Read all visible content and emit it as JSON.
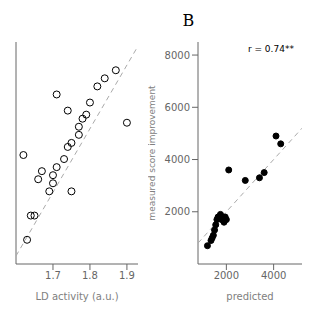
{
  "chart_data": [
    {
      "type": "scatter",
      "xlabel": "LD activity (a.u.)",
      "xlim": [
        1.6,
        1.93
      ],
      "xticks": [
        1.7,
        1.8,
        1.9
      ],
      "ylim": [
        0.3,
        0.85
      ],
      "yticks": [],
      "tick_labels": "x",
      "series": [
        {
          "type": "scatter",
          "marker": "open_circle",
          "color": "#000000",
          "x": [
            1.62,
            1.71,
            1.74,
            1.77,
            1.8,
            1.84,
            1.7,
            1.75,
            1.77,
            1.67,
            1.66,
            1.69,
            1.7,
            1.71,
            1.73,
            1.75,
            1.78,
            1.82,
            1.87,
            1.64,
            1.63,
            1.65,
            1.74,
            1.79,
            1.9
          ],
          "values": [
            0.57,
            0.72,
            0.68,
            0.62,
            0.7,
            0.76,
            0.52,
            0.6,
            0.64,
            0.53,
            0.51,
            0.48,
            0.5,
            0.54,
            0.56,
            0.48,
            0.66,
            0.74,
            0.78,
            0.42,
            0.36,
            0.42,
            0.59,
            0.67,
            0.65
          ]
        },
        {
          "type": "line",
          "line_style": "dashed",
          "color": "#aaaaaa",
          "x": [
            1.6,
            1.93
          ],
          "values": [
            0.32,
            0.84
          ]
        }
      ]
    },
    {
      "type": "scatter",
      "title": "B",
      "annotation": "r = 0.74**",
      "xlabel": "predicted",
      "ylabel": "measured score improvement",
      "xlim": [
        800,
        5200
      ],
      "xticks": [
        2000,
        4000
      ],
      "ylim": [
        0,
        8500
      ],
      "yticks": [
        2000,
        4000,
        6000,
        8000
      ],
      "series": [
        {
          "type": "scatter",
          "marker": "circle",
          "color": "#000000",
          "x": [
            1200,
            1350,
            1400,
            1450,
            1500,
            1550,
            1600,
            1650,
            1700,
            1750,
            1800,
            1850,
            1900,
            1950,
            2000,
            2100,
            2800,
            3400,
            3600,
            4100,
            4300
          ],
          "values": [
            700,
            900,
            1000,
            1100,
            1300,
            1500,
            1700,
            1800,
            1800,
            1900,
            1700,
            1800,
            1600,
            1800,
            1700,
            3600,
            3200,
            3300,
            3500,
            4900,
            4600
          ]
        },
        {
          "type": "line",
          "line_style": "dashed",
          "color": "#aaaaaa",
          "x": [
            800,
            5200
          ],
          "values": [
            800,
            5200
          ]
        }
      ]
    }
  ]
}
